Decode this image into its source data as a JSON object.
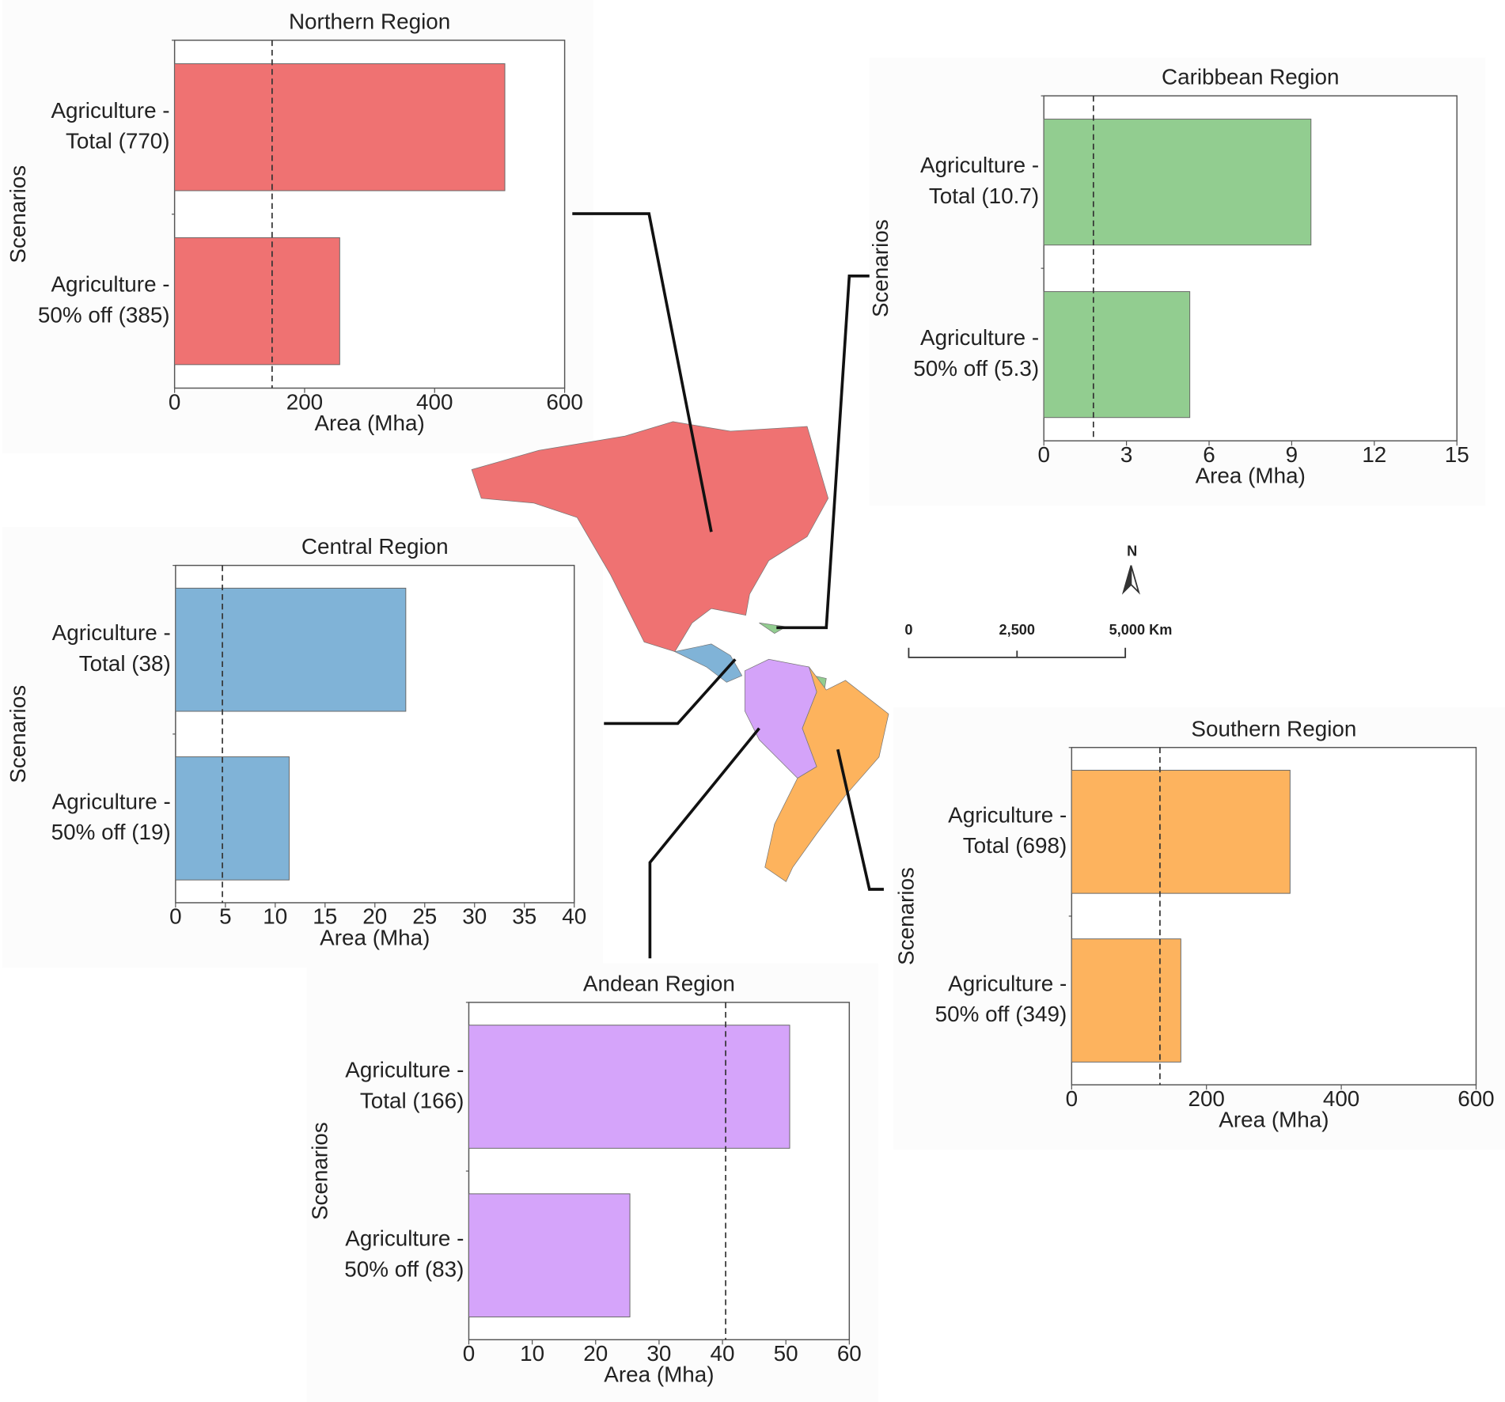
{
  "chart_data": [
    {
      "type": "bar",
      "orientation": "horizontal",
      "title": "Northern Region",
      "y_label": "Scenarios",
      "x_label": "Area (Mha)",
      "categories": [
        [
          "Agriculture -",
          "Total (770)"
        ],
        [
          "Agriculture -",
          "50% off (385)"
        ]
      ],
      "values": [
        508,
        254
      ],
      "color": "#ef7272",
      "reference_line": 150,
      "xlim": [
        0,
        600
      ],
      "xticks": [
        0,
        200,
        400,
        600
      ]
    },
    {
      "type": "bar",
      "orientation": "horizontal",
      "title": "Caribbean Region",
      "y_label": "Scenarios",
      "x_label": "Area (Mha)",
      "categories": [
        [
          "Agriculture -",
          "Total (10.7)"
        ],
        [
          "Agriculture -",
          "50% off (5.3)"
        ]
      ],
      "values": [
        9.7,
        5.3
      ],
      "color": "#92cd90",
      "reference_line": 1.8,
      "xlim": [
        0,
        15
      ],
      "xticks": [
        0,
        3,
        6,
        9,
        12,
        15
      ]
    },
    {
      "type": "bar",
      "orientation": "horizontal",
      "title": "Central Region",
      "y_label": "Scenarios",
      "x_label": "Area (Mha)",
      "categories": [
        [
          "Agriculture -",
          "Total (38)"
        ],
        [
          "Agriculture -",
          "50% off (19)"
        ]
      ],
      "values": [
        23.1,
        11.4
      ],
      "color": "#80b3d7",
      "reference_line": 4.7,
      "xlim": [
        0,
        40
      ],
      "xticks": [
        0,
        5,
        10,
        15,
        20,
        25,
        30,
        35,
        40
      ]
    },
    {
      "type": "bar",
      "orientation": "horizontal",
      "title": "Andean Region",
      "y_label": "Scenarios",
      "x_label": "Area (Mha)",
      "categories": [
        [
          "Agriculture -",
          "Total (166)"
        ],
        [
          "Agriculture -",
          "50% off (83)"
        ]
      ],
      "values": [
        50.6,
        25.4
      ],
      "color": "#d5a4fa",
      "reference_line": 40.5,
      "xlim": [
        0,
        60
      ],
      "xticks": [
        0,
        10,
        20,
        30,
        40,
        50,
        60
      ]
    },
    {
      "type": "bar",
      "orientation": "horizontal",
      "title": "Southern Region",
      "y_label": "Scenarios",
      "x_label": "Area (Mha)",
      "categories": [
        [
          "Agriculture -",
          "Total (698)"
        ],
        [
          "Agriculture -",
          "50% off (349)"
        ]
      ],
      "values": [
        324,
        162
      ],
      "color": "#fdb35e",
      "reference_line": 131,
      "xlim": [
        0,
        600
      ],
      "xticks": [
        0,
        200,
        400,
        600
      ]
    }
  ],
  "map": {
    "north": "N",
    "scale_labels": [
      "0",
      "2,500",
      "5,000 Km"
    ]
  }
}
